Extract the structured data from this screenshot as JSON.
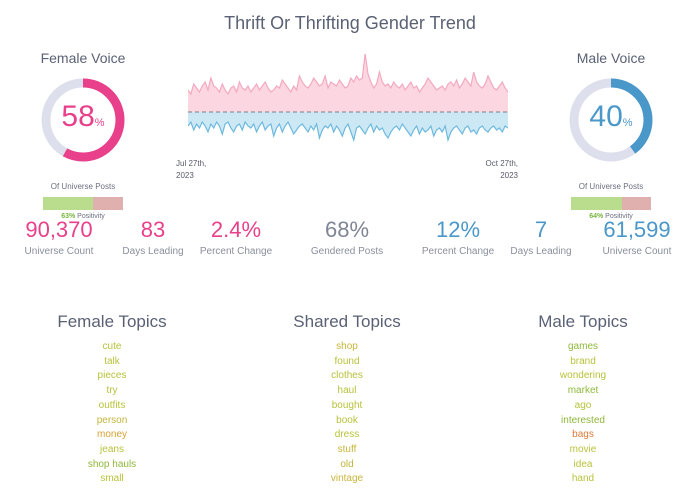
{
  "title": "Thrift Or Thrifting Gender Trend",
  "female": {
    "title": "Female Voice",
    "percent": "58",
    "percent_value": 58,
    "unit": "%",
    "universe_label": "Of Universe Posts",
    "positivity_value": 63,
    "positivity_pct": "63%",
    "positivity_label": "Positivity",
    "color": "#e8408a"
  },
  "male": {
    "title": "Male Voice",
    "percent": "40",
    "percent_value": 40,
    "unit": "%",
    "universe_label": "Of Universe Posts",
    "positivity_value": 64,
    "positivity_pct": "64%",
    "positivity_label": "Positivity",
    "color": "#4a97c9"
  },
  "stats": {
    "female_universe": {
      "value": "90,370",
      "label": "Universe Count"
    },
    "female_days": {
      "value": "83",
      "label": "Days Leading"
    },
    "female_change": {
      "value": "2.4%",
      "label": "Percent Change"
    },
    "gendered": {
      "value": "68%",
      "label": "Gendered Posts"
    },
    "male_change": {
      "value": "12%",
      "label": "Percent Change"
    },
    "male_days": {
      "value": "7",
      "label": "Days Leading"
    },
    "male_universe": {
      "value": "61,599",
      "label": "Universe Count"
    }
  },
  "topics": {
    "female": {
      "title": "Female Topics",
      "items": [
        "cute",
        "talk",
        "pieces",
        "try",
        "outfits",
        "person",
        "money",
        "jeans",
        "shop hauls",
        "small"
      ],
      "colors": [
        "#b8c23a",
        "#b8c23a",
        "#b8c23a",
        "#b8c23a",
        "#b8c23a",
        "#c2b43c",
        "#d6a035",
        "#b8c23a",
        "#8fb83a",
        "#b8c23a"
      ]
    },
    "shared": {
      "title": "Shared Topics",
      "items": [
        "shop",
        "found",
        "clothes",
        "haul",
        "bought",
        "book",
        "dress",
        "stuff",
        "old",
        "vintage"
      ],
      "colors": [
        "#c8b53a",
        "#b8c23a",
        "#b8c23a",
        "#b8c23a",
        "#b8c23a",
        "#b8c23a",
        "#b8c23a",
        "#c8b53a",
        "#c2b43c",
        "#c8b53a"
      ]
    },
    "male": {
      "title": "Male Topics",
      "items": [
        "games",
        "brand",
        "wondering",
        "market",
        "ago",
        "interested",
        "bags",
        "movie",
        "idea",
        "hand"
      ],
      "colors": [
        "#8fb83a",
        "#b8c23a",
        "#b8c23a",
        "#8fb83a",
        "#b8c23a",
        "#8fb83a",
        "#e07a3a",
        "#b8c23a",
        "#b8c23a",
        "#b8c23a"
      ]
    }
  },
  "chart_data": {
    "type": "area",
    "title": "",
    "x_start_label": "Jul 27th, 2023",
    "x_end_label": "Oct 27th, 2023",
    "x_start_line1": "Jul 27th,",
    "x_start_line2": "2023",
    "x_end_line1": "Oct 27th,",
    "x_end_line2": "2023",
    "grid": false,
    "series": [
      {
        "color": "#f4a8c0",
        "fill": "#fcd7e1",
        "values": [
          22,
          18,
          28,
          24,
          20,
          26,
          30,
          22,
          34,
          26,
          24,
          20,
          28,
          22,
          18,
          24,
          26,
          20,
          30,
          24,
          22,
          26,
          20,
          24,
          28,
          22,
          26,
          30,
          24,
          20,
          22,
          26,
          24,
          32,
          28,
          24,
          20,
          26,
          22,
          36,
          30,
          26,
          24,
          28,
          34,
          30,
          26,
          28,
          36,
          24,
          30,
          28,
          26,
          32,
          28,
          24,
          26,
          34,
          30,
          36,
          32,
          34,
          58,
          38,
          30,
          24,
          28,
          40,
          30,
          26,
          28,
          24,
          30,
          26,
          24,
          28,
          22,
          26,
          30,
          24,
          26,
          20,
          24,
          28,
          34,
          30,
          26,
          22,
          24,
          26,
          22,
          28,
          30,
          26,
          32,
          24,
          28,
          34,
          30,
          26,
          40,
          30,
          26,
          24,
          28,
          36,
          30,
          24,
          22,
          26,
          30,
          24,
          20
        ]
      },
      {
        "color": "#6cb9de",
        "fill": "#cde8f5",
        "values": [
          14,
          10,
          18,
          12,
          16,
          10,
          14,
          20,
          12,
          16,
          10,
          14,
          22,
          12,
          10,
          16,
          20,
          14,
          12,
          18,
          10,
          14,
          16,
          12,
          20,
          14,
          10,
          18,
          14,
          12,
          24,
          16,
          12,
          20,
          14,
          10,
          16,
          22,
          18,
          14,
          12,
          16,
          20,
          14,
          18,
          12,
          26,
          18,
          14,
          16,
          12,
          20,
          14,
          18,
          24,
          16,
          12,
          20,
          28,
          16,
          14,
          18,
          22,
          16,
          12,
          20,
          14,
          18,
          16,
          22,
          26,
          20,
          16,
          14,
          18,
          12,
          16,
          20,
          24,
          18,
          14,
          22,
          16,
          20,
          18,
          14,
          24,
          18,
          16,
          20,
          14,
          28,
          20,
          16,
          14,
          18,
          22,
          16,
          14,
          20,
          18,
          22,
          16,
          14,
          18,
          20,
          16,
          14,
          18,
          16,
          20,
          14,
          16
        ]
      }
    ]
  }
}
